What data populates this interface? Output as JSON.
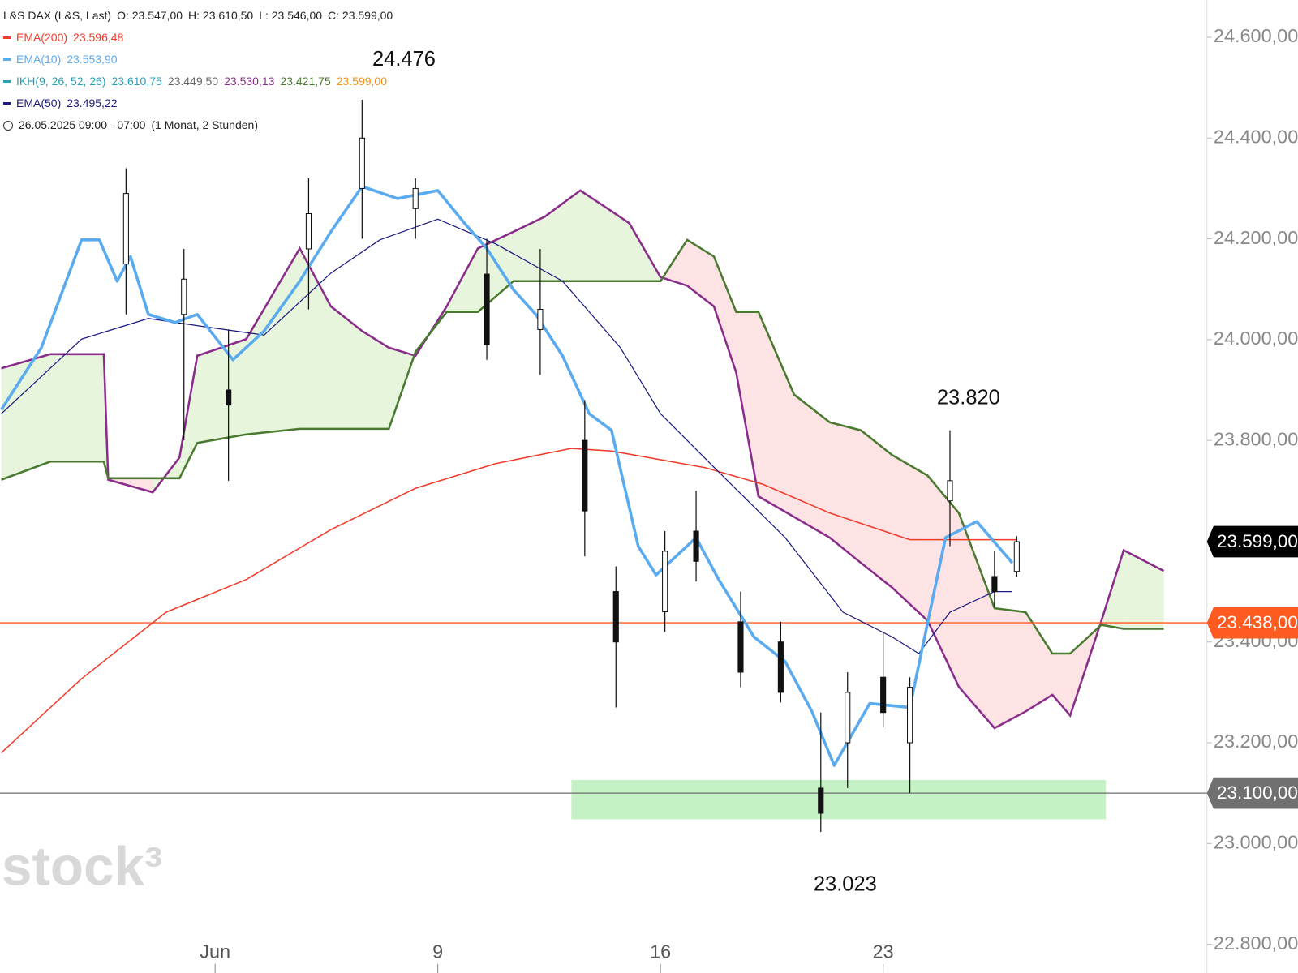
{
  "chart_data": {
    "type": "candlestick",
    "title": "L&S DAX (L&S, Last)",
    "ohlc_labels": [
      "O: 23.547,00",
      "H: 23.610,50",
      "L: 23.546,00",
      "C: 23.599,00"
    ],
    "indicators": [
      {
        "name": "EMA(200)",
        "color": "#f23a2a",
        "values": [
          {
            "text": "23.596,48",
            "color": "#f23a2a"
          }
        ]
      },
      {
        "name": "EMA(10)",
        "color": "#5aaaf0",
        "values": [
          {
            "text": "23.553,90",
            "color": "#5aaaf0"
          }
        ]
      },
      {
        "name": "IKH(9, 26, 52, 26)",
        "color": "#2a9fb8",
        "values": [
          {
            "text": "23.610,75",
            "color": "#2a9fb8"
          },
          {
            "text": "23.449,50",
            "color": "#666666"
          },
          {
            "text": "23.530,13",
            "color": "#8a2d8a"
          },
          {
            "text": "23.421,75",
            "color": "#4a7a30"
          },
          {
            "text": "23.599,00",
            "color": "#f0901a"
          }
        ]
      },
      {
        "name": "EMA(50)",
        "color": "#1a1a80",
        "values": [
          {
            "text": "23.495,22",
            "color": "#1a1a80"
          }
        ]
      }
    ],
    "time_info": "26.05.2025 09:00 - 07:00",
    "time_range": "(1 Monat, 2 Stunden)",
    "watermark": "stock³",
    "annotations": [
      "24.476",
      "23.820",
      "23.023"
    ],
    "xlim": [
      -4.83,
      22.27
    ],
    "xticks": [
      {
        "value": 0,
        "label": "Jun"
      },
      {
        "value": 5,
        "label": "9"
      },
      {
        "value": 10,
        "label": "16"
      },
      {
        "value": 15,
        "label": "23"
      }
    ],
    "ylim": [
      22743,
      24674
    ],
    "yticks": [
      {
        "value": 22800,
        "label": "22.800,00"
      },
      {
        "value": 23000,
        "label": "23.000,00"
      },
      {
        "value": 23200,
        "label": "23.200,00"
      },
      {
        "value": 23400,
        "label": "23.400,00"
      },
      {
        "value": 23600,
        "label": "23.600,00"
      },
      {
        "value": 23800,
        "label": "23.800,00"
      },
      {
        "value": 24000,
        "label": "24.000,00"
      },
      {
        "value": 24200,
        "label": "24.200,00"
      },
      {
        "value": 24400,
        "label": "24.400,00"
      },
      {
        "value": 24600,
        "label": "24.600,00"
      }
    ],
    "candles": {
      "x": [
        -2.0,
        -0.7,
        0.3,
        2.1,
        3.3,
        4.5,
        6.1,
        7.3,
        8.3,
        9.0,
        10.1,
        10.8,
        11.8,
        12.7,
        13.6,
        14.2,
        15.0,
        15.6,
        16.5,
        17.5,
        18.0
      ],
      "open": [
        24150,
        24050,
        23900,
        24180,
        24300,
        24260,
        24130,
        24020,
        23800,
        23500,
        23460,
        23620,
        23440,
        23400,
        23110,
        23200,
        23330,
        23200,
        23680,
        23530,
        23540
      ],
      "high": [
        24340,
        24180,
        24020,
        24320,
        24476,
        24320,
        24200,
        24180,
        23880,
        23550,
        23620,
        23700,
        23500,
        23440,
        23260,
        23340,
        23420,
        23330,
        23820,
        23580,
        23610
      ],
      "low": [
        24050,
        23800,
        23720,
        24060,
        24200,
        24200,
        23960,
        23930,
        23570,
        23270,
        23420,
        23520,
        23310,
        23280,
        23023,
        23110,
        23230,
        23100,
        23590,
        23470,
        23530
      ],
      "close": [
        24290,
        24120,
        23870,
        24250,
        24400,
        24300,
        23990,
        24060,
        23660,
        23400,
        23580,
        23560,
        23340,
        23300,
        23060,
        23300,
        23260,
        23310,
        23720,
        23500,
        23599
      ]
    },
    "cloud": {
      "x": [
        -4.8,
        -3.7,
        -2.5,
        -2.4,
        -1.4,
        -0.8,
        -0.4,
        0.7,
        1.9,
        2.6,
        3.3,
        3.9,
        4.5,
        5.2,
        5.9,
        6.7,
        7.4,
        8.2,
        8.9,
        9.3,
        10.0,
        10.6,
        11.2,
        11.7,
        12.2,
        13.0,
        13.8,
        14.5,
        15.2,
        16.0,
        16.7,
        17.5,
        18.2,
        18.8,
        19.2,
        19.9,
        20.4,
        21.3
      ],
      "span_a": [
        23943,
        23971,
        23971,
        23722,
        23697,
        23766,
        23968,
        24001,
        24181,
        24066,
        24017,
        23984,
        23968,
        24066,
        24181,
        24214,
        24244,
        24296,
        24255,
        24231,
        24124,
        24107,
        24066,
        23935,
        23689,
        23648,
        23607,
        23557,
        23508,
        23442,
        23311,
        23229,
        23262,
        23295,
        23254,
        23442,
        23582,
        23541
      ],
      "span_b": [
        23722,
        23758,
        23758,
        23725,
        23725,
        23725,
        23795,
        23812,
        23823,
        23823,
        23823,
        23823,
        23976,
        24055,
        24055,
        24116,
        24116,
        24116,
        24116,
        24116,
        24116,
        24198,
        24165,
        24055,
        24055,
        23891,
        23836,
        23820,
        23771,
        23730,
        23656,
        23467,
        23459,
        23377,
        23377,
        23434,
        23426,
        23426
      ],
      "span_a_color": "#8a2d8a",
      "span_b_color": "#4a7a30",
      "up_fill": "#e6f5dc",
      "down_fill": "#fde3e3"
    },
    "series": [
      {
        "name": "EMA(200)",
        "color": "#f23a2a",
        "width": 1.5,
        "x": [
          -4.8,
          -3.0,
          -1.1,
          0.7,
          2.6,
          4.5,
          6.3,
          8.0,
          8.9,
          11.0,
          12.3,
          13.8,
          15.6,
          18.0
        ],
        "values": [
          23180,
          23327,
          23459,
          23524,
          23623,
          23705,
          23754,
          23784,
          23779,
          23746,
          23713,
          23656,
          23603,
          23603
        ]
      },
      {
        "name": "EMA(50)",
        "color": "#1a1a80",
        "width": 1.2,
        "x": [
          -4.8,
          -3.0,
          -1.5,
          -0.2,
          1.1,
          2.6,
          3.7,
          5.0,
          6.3,
          7.8,
          9.1,
          10.0,
          11.3,
          12.8,
          14.1,
          15.2,
          15.8,
          16.5,
          17.5,
          17.9
        ],
        "values": [
          23853,
          24001,
          24042,
          24025,
          24009,
          24132,
          24198,
          24239,
          24190,
          24116,
          23984,
          23853,
          23738,
          23607,
          23459,
          23410,
          23377,
          23459,
          23500,
          23500
        ]
      },
      {
        "name": "EMA(10)",
        "color": "#5aaaf0",
        "width": 3.5,
        "x": [
          -4.8,
          -3.9,
          -3.0,
          -2.6,
          -2.2,
          -1.9,
          -1.5,
          -0.9,
          -0.4,
          0.4,
          1.1,
          1.9,
          2.6,
          3.3,
          4.1,
          5.0,
          5.6,
          6.1,
          6.7,
          7.2,
          7.8,
          8.4,
          8.9,
          9.5,
          9.9,
          10.8,
          11.3,
          12.1,
          12.8,
          13.4,
          13.9,
          14.7,
          15.6,
          16.4,
          17.1,
          17.9
        ],
        "values": [
          23861,
          23984,
          24198,
          24198,
          24116,
          24165,
          24050,
          24034,
          24050,
          23960,
          24017,
          24116,
          24214,
          24304,
          24280,
          24296,
          24231,
          24181,
          24099,
          24050,
          23968,
          23853,
          23820,
          23590,
          23533,
          23607,
          23525,
          23410,
          23361,
          23262,
          23155,
          23278,
          23270,
          23607,
          23639,
          23557
        ]
      }
    ],
    "zones": [
      {
        "x": [
          8.0,
          20.0
        ],
        "y": [
          23048,
          23126
        ],
        "color": "#c4f2c4"
      }
    ],
    "levels": [
      {
        "value": 23438,
        "label": "23.438,00",
        "color": "#ff5a1f",
        "line": true
      },
      {
        "value": 23100,
        "label": "23.100,00",
        "color": "#707070",
        "line": true
      },
      {
        "value": 23599,
        "label": "23.599,00",
        "color": "#000000",
        "line": false
      }
    ]
  }
}
